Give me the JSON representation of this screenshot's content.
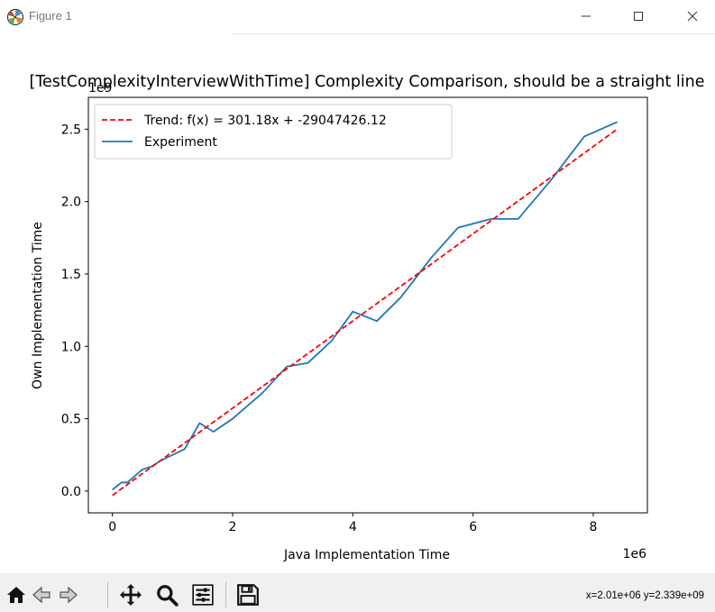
{
  "window": {
    "title": "Figure 1",
    "icon": "matplotlib-logo-icon",
    "controls": [
      "minimize-icon",
      "maximize-icon",
      "close-icon"
    ]
  },
  "chart_data": {
    "type": "line",
    "title": "[TestComplexityInterviewWithTime] Complexity Comparison, should be a straight line",
    "xlabel": "Java Implementation Time",
    "ylabel": "Own Implementation Time",
    "x_scale_label": "1e6",
    "y_scale_label": "1e9",
    "xlim": [
      -400000,
      8900000
    ],
    "ylim": [
      -150000000,
      2720000000
    ],
    "x_ticks": [
      0,
      2000000,
      4000000,
      6000000,
      8000000
    ],
    "x_tick_labels": [
      "0",
      "2",
      "4",
      "6",
      "8"
    ],
    "y_ticks": [
      0,
      500000000,
      1000000000,
      1500000000,
      2000000000,
      2500000000
    ],
    "y_tick_labels": [
      "0.0",
      "0.5",
      "1.0",
      "1.5",
      "2.0",
      "2.5"
    ],
    "legend_position": "upper-left",
    "grid": false,
    "series": [
      {
        "name": "Trend: f(x) = 301.18x + -29047426.12",
        "style": "dashed",
        "color": "#ff0000",
        "x": [
          0,
          8400000
        ],
        "y": [
          -29047426.12,
          2500864573.88
        ]
      },
      {
        "name": "Experiment",
        "style": "solid",
        "color": "#1f77b4",
        "x": [
          0,
          150000,
          250000,
          500000,
          650000,
          800000,
          1200000,
          1450000,
          1680000,
          2000000,
          2500000,
          2900000,
          3250000,
          3650000,
          4000000,
          4400000,
          4800000,
          5300000,
          5750000,
          6300000,
          6750000,
          7300000,
          7850000,
          8400000
        ],
        "y": [
          10000000,
          60000000,
          60000000,
          150000000,
          170000000,
          210000000,
          290000000,
          470000000,
          410000000,
          500000000,
          680000000,
          860000000,
          885000000,
          1040000000,
          1240000000,
          1175000000,
          1340000000,
          1610000000,
          1820000000,
          1880000000,
          1880000000,
          2150000000,
          2450000000,
          2550000000
        ]
      }
    ]
  },
  "toolbar": {
    "buttons": [
      "home-icon",
      "back-arrow-icon",
      "forward-arrow-icon",
      "pan-icon",
      "zoom-icon",
      "configure-subplots-icon",
      "save-icon"
    ],
    "coordinates": "x=2.01e+06 y=2.339e+09"
  }
}
